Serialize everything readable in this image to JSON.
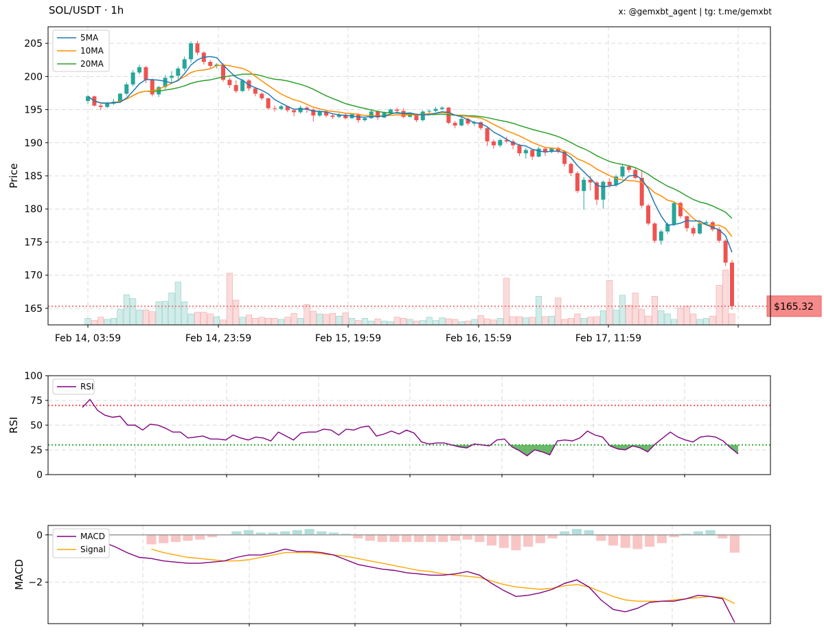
{
  "header": {
    "title": "SOL/USDT · 1h",
    "credit": "x: @gemxbt_agent | tg: t.me/gemxbt"
  },
  "colors": {
    "up": "#26a69a",
    "down": "#ef5350",
    "ma5": "#1f77b4",
    "ma10": "#ff8c00",
    "ma20": "#2ca02c",
    "rsi": "#800080",
    "macd": "#800080",
    "signal": "#ffa500",
    "overbought": "#ff4d4d",
    "oversold": "#33aa33"
  },
  "chart_data": [
    {
      "type": "candlestick",
      "ylabel": "Price",
      "ylim": [
        162.5,
        207.5
      ],
      "yticks": [
        165,
        170,
        175,
        180,
        185,
        190,
        195,
        200,
        205
      ],
      "xtick_labels": [
        "Feb 14, 03:59",
        "Feb 14, 23:59",
        "Feb 15, 19:59",
        "Feb 16, 15:59",
        "Feb 17, 11:59"
      ],
      "legend": [
        "5MA",
        "10MA",
        "20MA"
      ],
      "legend_position": "top-left",
      "grid": true,
      "current_price": 165.32,
      "current_price_label": "$165.32",
      "candles": [
        [
          196.3,
          197.2,
          195.9,
          197.0
        ],
        [
          197.0,
          197.1,
          195.5,
          195.6
        ],
        [
          195.6,
          195.9,
          194.9,
          195.4
        ],
        [
          195.4,
          196.2,
          195.2,
          195.9
        ],
        [
          195.9,
          196.6,
          195.7,
          196.2
        ],
        [
          196.2,
          197.5,
          196.0,
          197.4
        ],
        [
          197.4,
          199.1,
          197.1,
          198.8
        ],
        [
          198.8,
          201.0,
          198.5,
          200.6
        ],
        [
          200.6,
          201.8,
          200.3,
          201.4
        ],
        [
          201.4,
          201.6,
          199.0,
          199.5
        ],
        [
          199.5,
          199.7,
          197.0,
          197.3
        ],
        [
          197.3,
          198.6,
          196.9,
          198.4
        ],
        [
          198.4,
          200.2,
          198.1,
          199.8
        ],
        [
          199.8,
          200.8,
          198.9,
          200.1
        ],
        [
          200.1,
          201.5,
          199.5,
          201.2
        ],
        [
          201.2,
          203.0,
          200.8,
          202.6
        ],
        [
          202.6,
          205.3,
          202.1,
          205.0
        ],
        [
          205.0,
          205.4,
          203.2,
          203.6
        ],
        [
          203.6,
          203.8,
          201.8,
          202.2
        ],
        [
          202.2,
          202.5,
          201.1,
          201.6
        ],
        [
          201.6,
          202.0,
          201.2,
          201.8
        ],
        [
          201.8,
          202.0,
          199.2,
          199.5
        ],
        [
          199.5,
          199.8,
          198.3,
          198.7
        ],
        [
          198.7,
          199.4,
          197.5,
          197.8
        ],
        [
          197.8,
          199.6,
          197.6,
          199.4
        ],
        [
          199.4,
          199.6,
          197.8,
          198.2
        ],
        [
          198.2,
          198.4,
          197.0,
          197.4
        ],
        [
          197.4,
          197.6,
          196.4,
          196.7
        ],
        [
          196.7,
          196.8,
          195.0,
          195.2
        ],
        [
          195.2,
          195.6,
          194.7,
          195.1
        ],
        [
          195.1,
          195.7,
          194.9,
          195.5
        ],
        [
          195.5,
          195.6,
          194.6,
          194.9
        ],
        [
          194.9,
          195.0,
          194.0,
          194.6
        ],
        [
          194.6,
          195.6,
          194.4,
          195.3
        ],
        [
          195.3,
          195.5,
          194.5,
          195.0
        ],
        [
          195.0,
          195.2,
          193.2,
          194.1
        ],
        [
          194.1,
          194.9,
          193.9,
          194.7
        ],
        [
          194.7,
          194.9,
          193.8,
          194.1
        ],
        [
          194.1,
          194.3,
          193.6,
          193.9
        ],
        [
          193.9,
          194.5,
          193.7,
          194.2
        ],
        [
          194.2,
          194.4,
          193.5,
          193.7
        ],
        [
          193.7,
          194.4,
          193.6,
          194.3
        ],
        [
          194.3,
          194.5,
          193.0,
          193.4
        ],
        [
          193.4,
          193.9,
          193.2,
          193.7
        ],
        [
          193.7,
          195.1,
          193.6,
          194.7
        ],
        [
          194.7,
          194.9,
          193.4,
          193.8
        ],
        [
          193.8,
          194.7,
          193.7,
          194.5
        ],
        [
          194.5,
          195.2,
          194.3,
          195.0
        ],
        [
          195.0,
          195.3,
          194.6,
          194.8
        ],
        [
          194.8,
          195.2,
          193.7,
          193.9
        ],
        [
          193.9,
          194.5,
          193.8,
          194.3
        ],
        [
          194.3,
          194.4,
          193.1,
          193.4
        ],
        [
          193.4,
          194.9,
          193.2,
          194.7
        ],
        [
          194.7,
          195.0,
          194.3,
          194.8
        ],
        [
          194.8,
          195.4,
          194.6,
          195.1
        ],
        [
          195.1,
          195.5,
          194.9,
          195.3
        ],
        [
          195.3,
          195.4,
          192.8,
          193.0
        ],
        [
          193.0,
          193.3,
          192.2,
          192.6
        ],
        [
          192.6,
          193.9,
          192.5,
          193.6
        ],
        [
          193.6,
          193.8,
          192.6,
          192.9
        ],
        [
          192.9,
          193.3,
          192.5,
          193.1
        ],
        [
          193.1,
          193.2,
          191.9,
          192.2
        ],
        [
          192.2,
          192.3,
          189.5,
          190.2
        ],
        [
          190.2,
          190.5,
          189.1,
          189.6
        ],
        [
          189.6,
          190.6,
          189.3,
          190.4
        ],
        [
          190.4,
          190.9,
          189.9,
          190.2
        ],
        [
          190.2,
          190.5,
          189.0,
          189.6
        ],
        [
          189.6,
          189.8,
          188.0,
          188.4
        ],
        [
          188.4,
          189.2,
          187.6,
          188.9
        ],
        [
          188.9,
          189.1,
          187.4,
          187.9
        ],
        [
          187.9,
          189.4,
          187.8,
          189.1
        ],
        [
          189.1,
          189.4,
          188.0,
          188.6
        ],
        [
          188.6,
          189.3,
          188.4,
          189.2
        ],
        [
          189.2,
          189.4,
          188.4,
          188.7
        ],
        [
          188.7,
          188.9,
          186.4,
          186.8
        ],
        [
          186.8,
          187.0,
          185.0,
          185.4
        ],
        [
          185.4,
          185.7,
          182.4,
          182.7
        ],
        [
          182.7,
          184.8,
          179.9,
          184.4
        ],
        [
          184.4,
          185.0,
          182.8,
          184.0
        ],
        [
          184.0,
          184.2,
          180.6,
          181.4
        ],
        [
          181.4,
          184.3,
          180.0,
          184.1
        ],
        [
          184.1,
          184.6,
          183.2,
          183.6
        ],
        [
          183.6,
          185.2,
          183.3,
          184.9
        ],
        [
          184.9,
          186.8,
          184.6,
          186.4
        ],
        [
          186.4,
          186.6,
          185.5,
          185.9
        ],
        [
          185.9,
          186.2,
          184.5,
          184.7
        ],
        [
          184.7,
          185.9,
          180.2,
          180.5
        ],
        [
          180.5,
          180.8,
          177.5,
          177.8
        ],
        [
          177.8,
          178.0,
          174.9,
          175.2
        ],
        [
          175.2,
          176.9,
          174.6,
          176.6
        ],
        [
          176.6,
          178.0,
          176.2,
          177.7
        ],
        [
          177.7,
          181.0,
          177.4,
          180.9
        ],
        [
          180.9,
          181.1,
          178.6,
          178.9
        ],
        [
          178.9,
          179.0,
          176.6,
          177.1
        ],
        [
          177.1,
          177.4,
          175.9,
          176.3
        ],
        [
          176.3,
          178.1,
          176.1,
          177.8
        ],
        [
          177.8,
          178.3,
          177.5,
          178.0
        ],
        [
          178.0,
          178.2,
          176.6,
          176.9
        ],
        [
          176.9,
          177.3,
          174.9,
          175.2
        ],
        [
          175.2,
          175.4,
          171.4,
          171.9
        ],
        [
          171.9,
          172.3,
          164.8,
          165.32
        ]
      ],
      "volume_level": [
        0.12,
        0.08,
        0.14,
        0.1,
        0.12,
        0.28,
        0.55,
        0.48,
        0.27,
        0.27,
        0.24,
        0.42,
        0.43,
        0.58,
        0.78,
        0.42,
        0.2,
        0.23,
        0.23,
        0.2,
        0.15,
        0.09,
        0.94,
        0.45,
        0.14,
        0.18,
        0.12,
        0.14,
        0.12,
        0.12,
        0.1,
        0.14,
        0.21,
        0.12,
        0.37,
        0.25,
        0.2,
        0.19,
        0.21,
        0.16,
        0.22,
        0.12,
        0.08,
        0.12,
        0.07,
        0.11,
        0.07,
        0.06,
        0.14,
        0.12,
        0.1,
        0.07,
        0.08,
        0.14,
        0.08,
        0.13,
        0.11,
        0.1,
        0.06,
        0.07,
        0.1,
        0.17,
        0.11,
        0.09,
        0.12,
        0.85,
        0.15,
        0.15,
        0.13,
        0.14,
        0.52,
        0.15,
        0.16,
        0.49,
        0.1,
        0.12,
        0.2,
        0.12,
        0.14,
        0.15,
        0.26,
        0.81,
        0.27,
        0.54,
        0.36,
        0.58,
        0.28,
        0.16,
        0.52,
        0.26,
        0.2,
        0.1,
        0.31,
        0.34,
        0.2,
        0.1,
        0.12,
        0.16,
        0.72,
        1.0,
        0.2
      ]
    },
    {
      "type": "line",
      "ylabel": "RSI",
      "ylim": [
        0,
        100
      ],
      "yticks": [
        0,
        25,
        50,
        75,
        100
      ],
      "legend": [
        "RSI"
      ],
      "overbought": 70,
      "oversold": 30,
      "values": [
        68,
        76,
        65,
        60,
        58,
        59,
        50,
        50,
        45,
        51,
        50,
        47,
        43,
        43,
        37,
        38,
        39,
        36,
        36,
        35,
        40,
        37,
        35,
        38,
        37,
        34,
        43,
        39,
        35,
        42,
        43,
        43,
        46,
        45,
        40,
        46,
        45,
        48,
        49,
        39,
        41,
        44,
        41,
        45,
        42,
        33,
        31,
        32,
        32,
        30,
        28,
        27,
        31,
        30,
        29,
        35,
        36,
        28,
        24,
        19,
        25,
        23,
        20,
        34,
        35,
        34,
        37,
        44,
        40,
        38,
        29,
        26,
        25,
        29,
        27,
        23,
        31,
        37,
        43,
        38,
        35,
        33,
        38,
        39,
        38,
        34,
        27,
        21
      ]
    },
    {
      "type": "line",
      "ylabel": "MACD",
      "ylim": [
        -3.75,
        0.4
      ],
      "yticks": [
        -2,
        0
      ],
      "legend": [
        "MACD",
        "Signal"
      ],
      "macd": [
        -0.1,
        -0.3,
        -0.5,
        -0.75,
        -0.95,
        -1.0,
        -1.1,
        -1.15,
        -1.2,
        -1.2,
        -1.15,
        -1.1,
        -0.95,
        -0.85,
        -0.85,
        -0.75,
        -0.6,
        -0.7,
        -0.7,
        -0.75,
        -0.85,
        -1.05,
        -1.25,
        -1.35,
        -1.45,
        -1.5,
        -1.6,
        -1.65,
        -1.7,
        -1.7,
        -1.65,
        -1.55,
        -1.7,
        -2.05,
        -2.35,
        -2.6,
        -2.55,
        -2.45,
        -2.3,
        -2.05,
        -1.9,
        -2.2,
        -2.75,
        -3.15,
        -3.25,
        -3.1,
        -2.85,
        -2.8,
        -2.8,
        -2.7,
        -2.55,
        -2.6,
        -2.7,
        -3.7
      ],
      "signal": [
        null,
        null,
        null,
        null,
        null,
        -0.6,
        -0.75,
        -0.85,
        -0.95,
        -1.0,
        -1.05,
        -1.1,
        -1.1,
        -1.05,
        -0.95,
        -0.85,
        -0.75,
        -0.75,
        -0.75,
        -0.8,
        -0.85,
        -0.9,
        -1.0,
        -1.1,
        -1.2,
        -1.3,
        -1.4,
        -1.5,
        -1.55,
        -1.65,
        -1.7,
        -1.75,
        -1.8,
        -1.95,
        -2.1,
        -2.2,
        -2.25,
        -2.3,
        -2.25,
        -2.15,
        -2.1,
        -2.2,
        -2.4,
        -2.6,
        -2.75,
        -2.8,
        -2.8,
        -2.8,
        -2.75,
        -2.7,
        -2.65,
        -2.6,
        -2.65,
        -2.9
      ],
      "histogram": [
        null,
        null,
        null,
        null,
        null,
        -0.4,
        -0.35,
        -0.3,
        -0.25,
        -0.2,
        -0.1,
        0.0,
        0.15,
        0.2,
        0.1,
        0.1,
        0.15,
        0.2,
        0.25,
        0.15,
        0.1,
        0.05,
        -0.15,
        -0.25,
        -0.3,
        -0.3,
        -0.3,
        -0.3,
        -0.3,
        -0.3,
        -0.25,
        -0.2,
        -0.3,
        -0.45,
        -0.55,
        -0.65,
        -0.5,
        -0.35,
        -0.15,
        0.15,
        0.25,
        0.2,
        -0.25,
        -0.45,
        -0.55,
        -0.6,
        -0.5,
        -0.35,
        -0.1,
        0.05,
        0.15,
        0.2,
        -0.15,
        -0.75
      ]
    }
  ]
}
